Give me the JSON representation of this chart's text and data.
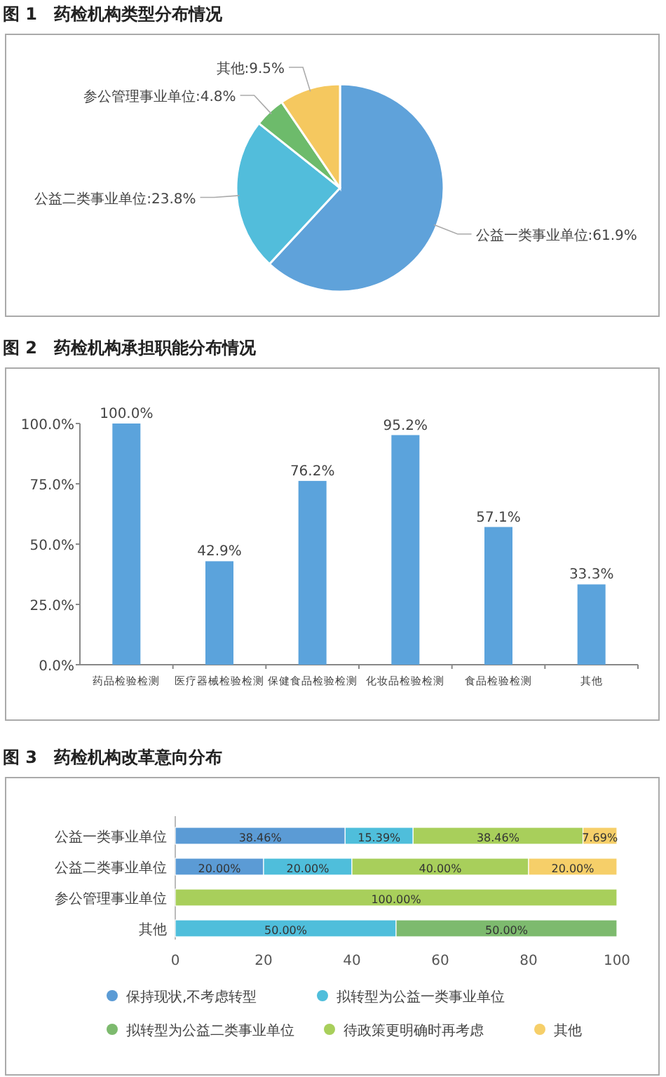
{
  "chart_data": [
    {
      "type": "pie",
      "title": "图 1　药检机构类型分布情况",
      "categories": [
        "公益一类事业单位",
        "公益二类事业单位",
        "参公管理事业单位",
        "其他"
      ],
      "values": [
        61.9,
        23.8,
        4.8,
        9.5
      ],
      "colors": [
        "#5fa2da",
        "#52bddb",
        "#6dbb6b",
        "#f5c85f"
      ],
      "value_labels": [
        ":61.9%",
        ":23.8%",
        ":4.8%",
        ":9.5%"
      ]
    },
    {
      "type": "bar",
      "title": "图 2　药检机构承担职能分布情况",
      "categories": [
        "药品检验检测",
        "医疗器械检验检测",
        "保健食品检验检测",
        "化妆品检验检测",
        "食品检验检测",
        "其他"
      ],
      "values": [
        100.0,
        42.9,
        76.2,
        95.2,
        57.1,
        33.3
      ],
      "colors": [
        "#5ba3dc",
        "#5ba3dc",
        "#5ba3dc",
        "#5ba3dc",
        "#5ba3dc",
        "#5ba3dc"
      ],
      "value_labels": [
        "100.0%",
        "42.9%",
        "76.2%",
        "95.2%",
        "57.1%",
        "33.3%"
      ],
      "ylim": [
        0,
        100
      ],
      "yticks": [
        {
          "value": 0,
          "label": "0.0%"
        },
        {
          "value": 25,
          "label": "25.0%"
        },
        {
          "value": 50,
          "label": "50.0%"
        },
        {
          "value": 75,
          "label": "75.0%"
        },
        {
          "value": 100,
          "label": "100.0%"
        }
      ]
    },
    {
      "type": "bar",
      "title": "图 3　药检机构改革意向分布",
      "orientation": "horizontal",
      "stacked": true,
      "legend": "bottom",
      "categories": [
        "公益一类事业单位",
        "公益二类事业单位",
        "参公管理事业单位",
        "其他"
      ],
      "xlim": [
        0,
        100
      ],
      "xticks": [
        0,
        20,
        40,
        60,
        80,
        100
      ],
      "series": [
        {
          "name": "保持现状,不考虑转型",
          "color": "#5b9bd5",
          "values": [
            38.46,
            20.0,
            null,
            null
          ],
          "value_labels": [
            "38.46%",
            "20.00%",
            null,
            null
          ]
        },
        {
          "name": "拟转型为公益一类事业单位",
          "color": "#4fbedb",
          "values": [
            15.39,
            20.0,
            null,
            50.0
          ],
          "value_labels": [
            "15.39%",
            "20.00%",
            null,
            "50.00%"
          ]
        },
        {
          "name": "拟转型为公益二类事业单位",
          "color": "#7dba6e",
          "values": [
            null,
            null,
            null,
            50.0
          ],
          "value_labels": [
            null,
            null,
            null,
            "50.00%"
          ]
        },
        {
          "name": "待政策更明确时再考虑",
          "color": "#a8cf5b",
          "values": [
            38.46,
            40.0,
            100.0,
            null
          ],
          "value_labels": [
            "38.46%",
            "40.00%",
            "100.00%",
            null
          ]
        },
        {
          "name": "其他",
          "color": "#f6cf69",
          "values": [
            7.69,
            20.0,
            null,
            null
          ],
          "value_labels": [
            "7.69%",
            "20.00%",
            null,
            null
          ]
        }
      ]
    }
  ]
}
